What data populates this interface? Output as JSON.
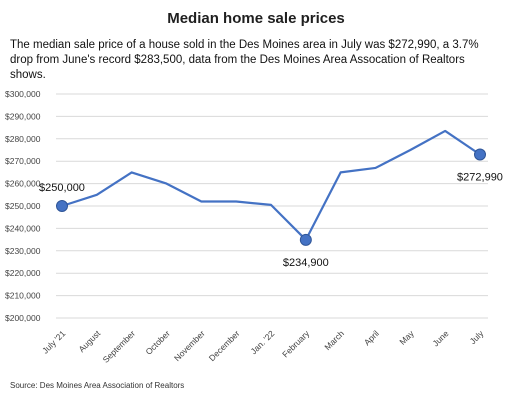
{
  "title": "Median home sale prices",
  "subtitle": "The median sale price of a house sold in the Des Moines area in July was $272,990, a 3.7% drop from June's record $283,500, data from the Des Moines Area Assocation of Realtors shows.",
  "source": "Source: Des Moines Area Association of  Realtors",
  "colors": {
    "line": "#4472C4",
    "marker": "#4472C4",
    "grid": "#d9d9d9"
  },
  "chart_data": {
    "type": "line",
    "title": "Median home sale prices",
    "categories": [
      "July '21",
      "August",
      "September",
      "October",
      "November",
      "December",
      "Jan. '22",
      "February",
      "March",
      "April",
      "May",
      "June",
      "July"
    ],
    "values": [
      250000,
      255000,
      265000,
      260000,
      252000,
      252000,
      250500,
      234900,
      265000,
      267000,
      275000,
      283500,
      272990
    ],
    "ylim": [
      200000,
      300000
    ],
    "yticks": [
      "$200,000",
      "$210,000",
      "$220,000",
      "$230,000",
      "$240,000",
      "$250,000",
      "$260,000",
      "$270,000",
      "$280,000",
      "$290,000",
      "$300,000"
    ],
    "grid": true,
    "annotations": [
      {
        "index": 0,
        "label": "$250,000",
        "position": "above"
      },
      {
        "index": 7,
        "label": "$234,900",
        "position": "below"
      },
      {
        "index": 12,
        "label": "$272,990",
        "position": "below"
      }
    ]
  }
}
